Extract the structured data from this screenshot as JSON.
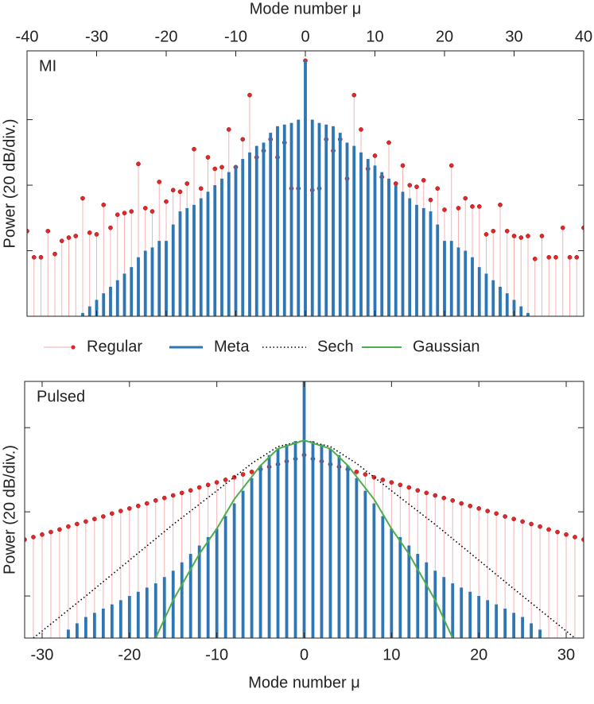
{
  "chart_data": [
    {
      "type": "stem",
      "label": "MI",
      "xlabel": "Mode number μ",
      "ylabel": "Power (20 dB/div.)",
      "xlim": [
        -40,
        40
      ],
      "xticks": [
        -40,
        -30,
        -20,
        -10,
        0,
        10,
        20,
        30,
        40
      ],
      "ylim": [
        0,
        81
      ],
      "yticks": [
        20,
        40,
        60
      ],
      "series": [
        {
          "type": "stem",
          "color": "#e0282a",
          "x": [
            -40,
            -39,
            -38,
            -37,
            -36,
            -35,
            -34,
            -33,
            -32,
            -31,
            -30,
            -29,
            -28,
            -27,
            -26,
            -25,
            -24,
            -23,
            -22,
            -21,
            -20,
            -19,
            -18,
            -17,
            -16,
            -15,
            -14,
            -13,
            -12,
            -11,
            -10,
            -9,
            -8,
            -7,
            -6,
            -5,
            -4,
            -3,
            -2,
            -1,
            0,
            1,
            2,
            3,
            4,
            5,
            6,
            7,
            8,
            9,
            10,
            11,
            12,
            13,
            14,
            15,
            16,
            17,
            18,
            19,
            20,
            21,
            22,
            23,
            24,
            25,
            26,
            27,
            28,
            29,
            30,
            31,
            32,
            33,
            34,
            35,
            36,
            37,
            38,
            39,
            40
          ],
          "values": [
            26,
            18,
            18,
            26,
            19,
            23,
            24,
            24.5,
            36,
            25.5,
            25,
            34,
            27,
            31,
            31.5,
            32,
            46.5,
            33,
            32,
            41,
            35,
            38.5,
            38,
            40.5,
            51,
            39,
            48.5,
            45,
            45.5,
            57,
            45.5,
            54,
            67.5,
            48.5,
            50.5,
            54,
            48.5,
            53,
            39,
            39,
            78,
            38.5,
            39,
            54,
            50.5,
            54,
            42,
            67.5,
            57,
            45,
            49,
            42.5,
            53,
            40.5,
            46,
            40,
            39.5,
            41.5,
            35.5,
            39,
            32.5,
            46,
            33,
            36,
            33.5,
            33.5,
            25,
            26,
            34,
            26,
            24.5,
            24,
            24.5,
            17.5,
            24.5,
            18,
            18,
            27,
            18,
            18,
            27
          ]
        },
        {
          "type": "bar",
          "color": "#2e77b4",
          "x": [
            -32,
            -31,
            -30,
            -29,
            -28,
            -27,
            -26,
            -25,
            -24,
            -23,
            -22,
            -21,
            -20,
            -19,
            -18,
            -17,
            -16,
            -15,
            -14,
            -13,
            -12,
            -11,
            -10,
            -9,
            -8,
            -7,
            -6,
            -5,
            -4,
            -3,
            -2,
            -1,
            0,
            1,
            2,
            3,
            4,
            5,
            6,
            7,
            8,
            9,
            10,
            11,
            12,
            13,
            14,
            15,
            16,
            17,
            18,
            19,
            20,
            21,
            22,
            23,
            24,
            25,
            26,
            27,
            28,
            29,
            30,
            31,
            32
          ],
          "values": [
            1,
            3,
            5,
            7,
            9,
            11,
            13,
            15,
            18,
            20,
            21,
            23,
            23,
            28,
            32,
            33,
            34,
            36,
            38,
            40,
            42,
            44,
            46,
            48,
            50,
            52,
            53,
            56,
            58,
            58.5,
            59,
            60,
            78,
            60,
            59,
            58.5,
            58,
            56,
            53,
            52,
            50,
            48,
            46,
            44,
            42,
            40,
            38,
            36,
            34,
            33,
            32,
            28,
            23,
            23,
            21,
            20,
            18,
            15,
            13,
            11,
            9,
            7,
            5,
            3,
            1
          ]
        }
      ]
    },
    {
      "type": "stem",
      "label": "Pulsed",
      "xlabel": "Mode number μ",
      "ylabel": "Power (20 dB/div.)",
      "xlim": [
        -32,
        32
      ],
      "xticks": [
        -30,
        -20,
        -10,
        0,
        10,
        20,
        30
      ],
      "ylim": [
        0,
        61
      ],
      "yticks": [
        10,
        30,
        50
      ],
      "series": [
        {
          "name": "Regular",
          "type": "stem",
          "color": "#e0282a",
          "x": [
            -32,
            -31,
            -30,
            -29,
            -28,
            -27,
            -26,
            -25,
            -24,
            -23,
            -22,
            -21,
            -20,
            -19,
            -18,
            -17,
            -16,
            -15,
            -14,
            -13,
            -12,
            -11,
            -10,
            -9,
            -8,
            -7,
            -6,
            -5,
            -4,
            -3,
            -2,
            -1,
            0,
            1,
            2,
            3,
            4,
            5,
            6,
            7,
            8,
            9,
            10,
            11,
            12,
            13,
            14,
            15,
            16,
            17,
            18,
            19,
            20,
            21,
            22,
            23,
            24,
            25,
            26,
            27,
            28,
            29,
            30,
            31,
            32
          ],
          "values": [
            23.4,
            24.0,
            24.6,
            25.2,
            25.8,
            26.5,
            27.1,
            27.7,
            28.3,
            28.9,
            29.6,
            30.2,
            30.8,
            31.4,
            32.0,
            32.7,
            33.3,
            33.9,
            34.5,
            35.1,
            35.8,
            36.4,
            37.0,
            37.6,
            38.2,
            38.9,
            39.5,
            40.1,
            40.7,
            41.3,
            42.0,
            42.6,
            43.5,
            42.6,
            42.0,
            41.3,
            40.7,
            40.1,
            39.5,
            38.9,
            38.2,
            37.6,
            37.0,
            36.4,
            35.8,
            35.1,
            34.5,
            33.9,
            33.3,
            32.7,
            32.0,
            31.4,
            30.8,
            30.2,
            29.6,
            28.9,
            28.3,
            27.7,
            27.1,
            26.5,
            25.8,
            25.2,
            24.6,
            24.0,
            23.4
          ]
        },
        {
          "name": "Meta",
          "type": "bar",
          "color": "#2e77b4",
          "x": [
            -27,
            -26,
            -25,
            -24,
            -23,
            -22,
            -21,
            -20,
            -19,
            -18,
            -17,
            -16,
            -15,
            -14,
            -13,
            -12,
            -11,
            -10,
            -9,
            -8,
            -7,
            -6,
            -5,
            -4,
            -3,
            -2,
            -1,
            0,
            1,
            2,
            3,
            4,
            5,
            6,
            7,
            8,
            9,
            10,
            11,
            12,
            13,
            14,
            15,
            16,
            17,
            18,
            19,
            20,
            21,
            22,
            23,
            24,
            25,
            26,
            27
          ],
          "values": [
            2,
            3.5,
            5,
            6,
            7,
            8,
            9,
            10,
            11,
            12,
            13,
            14.5,
            16,
            18,
            20,
            22,
            24,
            26,
            29,
            32,
            35,
            38,
            41,
            43.5,
            45,
            46,
            46.8,
            61,
            46.8,
            46,
            45,
            43.5,
            41,
            38,
            35,
            32,
            29,
            26,
            24,
            22,
            20,
            18,
            16,
            14.5,
            13,
            12,
            11,
            10,
            9,
            8,
            7,
            6,
            5,
            3.5,
            2
          ]
        },
        {
          "name": "Sech",
          "type": "line",
          "color": "#000000",
          "dash": "dotted",
          "x": [
            -31,
            -25,
            -20,
            -15,
            -10,
            -6,
            -3,
            0,
            3,
            6,
            10,
            15,
            20,
            25,
            31
          ],
          "values": [
            0,
            10,
            18.5,
            27,
            35,
            41.5,
            45.5,
            47,
            45.5,
            41.5,
            35,
            27,
            18.5,
            10,
            0
          ]
        },
        {
          "name": "Gaussian",
          "type": "line",
          "color": "#4cae4c",
          "x": [
            -17,
            -15,
            -12,
            -10,
            -8,
            -5,
            -3,
            0,
            3,
            5,
            8,
            10,
            12,
            15,
            17
          ],
          "values": [
            0,
            9,
            20,
            26,
            33,
            41,
            45,
            47,
            45,
            41,
            33,
            26,
            20,
            9,
            0
          ]
        }
      ]
    }
  ]
}
